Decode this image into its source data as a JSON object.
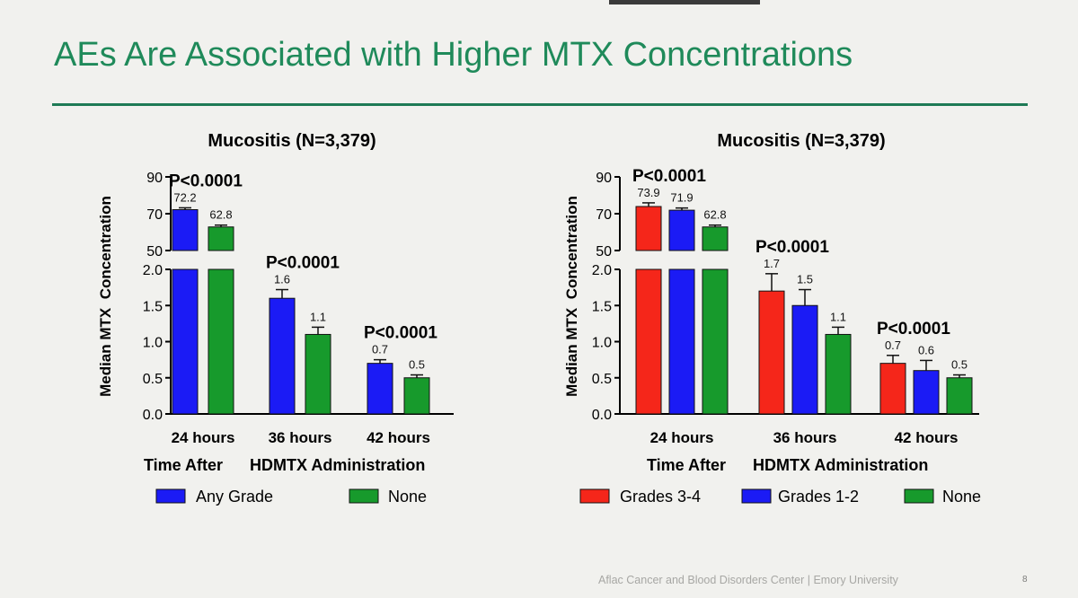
{
  "slide": {
    "title": "AEs Are Associated with Higher MTX Concentrations",
    "footer": "Aflac Cancer and Blood Disorders Center | Emory University",
    "page_number": "8",
    "accent_color": "#1f8a5a"
  },
  "chart_data": [
    {
      "type": "bar",
      "title": "Mucositis (N=3,379)",
      "ylabel": "Median MTX  Concentration",
      "xlabel_parts": [
        "Time After",
        "HDMTX Administration"
      ],
      "axis_break": true,
      "lower_ylim": [
        0,
        2.0
      ],
      "upper_ylim": [
        50,
        90
      ],
      "lower_ticks": [
        "0.0",
        "0.5",
        "1.0",
        "1.5",
        "2.0"
      ],
      "upper_ticks": [
        "50",
        "70",
        "90"
      ],
      "categories": [
        "24 hours",
        "36 hours",
        "42 hours"
      ],
      "p_values": [
        "P<0.0001",
        "P<0.0001",
        "P<0.0001"
      ],
      "series": [
        {
          "name": "Any Grade",
          "color": "#1b1bf5",
          "values": [
            72.2,
            1.6,
            0.7
          ],
          "labels": [
            "72.2",
            "1.6",
            "0.7"
          ],
          "errors": [
            1.0,
            0.12,
            0.05
          ]
        },
        {
          "name": "None",
          "color": "#179a2c",
          "values": [
            62.8,
            1.1,
            0.5
          ],
          "labels": [
            "62.8",
            "1.1",
            "0.5"
          ],
          "errors": [
            1.0,
            0.1,
            0.04
          ]
        }
      ],
      "legend": "bottom"
    },
    {
      "type": "bar",
      "title": "Mucositis (N=3,379)",
      "ylabel": "Median MTX  Concentration",
      "xlabel_parts": [
        "Time After",
        "HDMTX Administration"
      ],
      "axis_break": true,
      "lower_ylim": [
        0,
        2.0
      ],
      "upper_ylim": [
        50,
        90
      ],
      "lower_ticks": [
        "0.0",
        "0.5",
        "1.0",
        "1.5",
        "2.0"
      ],
      "upper_ticks": [
        "50",
        "70",
        "90"
      ],
      "categories": [
        "24 hours",
        "36 hours",
        "42 hours"
      ],
      "p_values": [
        "P<0.0001",
        "P<0.0001",
        "P<0.0001"
      ],
      "series": [
        {
          "name": "Grades 3-4",
          "color": "#f5261a",
          "values": [
            73.9,
            1.7,
            0.7
          ],
          "labels": [
            "73.9",
            "1.7",
            "0.7"
          ],
          "errors": [
            2.0,
            0.24,
            0.11
          ]
        },
        {
          "name": "Grades 1-2",
          "color": "#1b1bf5",
          "values": [
            71.9,
            1.5,
            0.6
          ],
          "labels": [
            "71.9",
            "1.5",
            "0.6"
          ],
          "errors": [
            1.2,
            0.22,
            0.14
          ]
        },
        {
          "name": "None",
          "color": "#179a2c",
          "values": [
            62.8,
            1.1,
            0.5
          ],
          "labels": [
            "62.8",
            "1.1",
            "0.5"
          ],
          "errors": [
            1.0,
            0.1,
            0.04
          ]
        }
      ],
      "legend": "bottom"
    }
  ]
}
